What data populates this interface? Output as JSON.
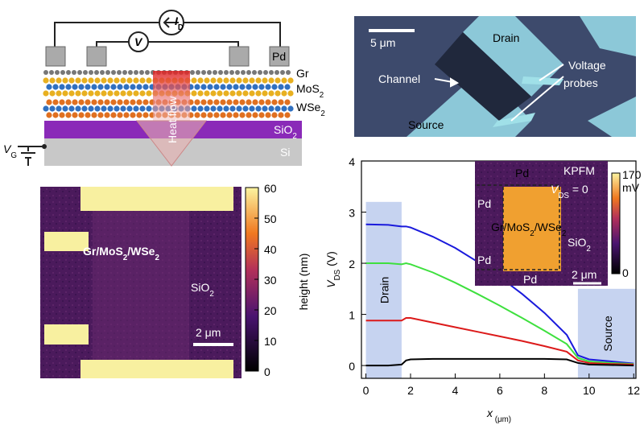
{
  "schematic": {
    "current": [
      "I",
      "D"
    ],
    "voltmeter": "V",
    "pd": "Pd",
    "gr": "Gr",
    "mos2": [
      "MoS",
      "2"
    ],
    "wse2": [
      "WSe",
      "2"
    ],
    "sio2": [
      "SiO",
      "2"
    ],
    "si": "Si",
    "gate": [
      "V",
      "G"
    ],
    "heat": "Heat flow"
  },
  "optical_image": {
    "scale": "5 μm",
    "drain": "Drain",
    "channel": "Channel",
    "source": "Source",
    "probes": [
      "Voltage",
      "probes"
    ]
  },
  "afm_map": {
    "sample": [
      "Gr/MoS",
      "2",
      "/WSe",
      "2"
    ],
    "substrate": [
      "SiO",
      "2"
    ],
    "scale": "2 μm",
    "colorbar_label": "height (nm)",
    "clim": [
      0,
      60
    ],
    "ticks": [
      0,
      10,
      20,
      30,
      40,
      50,
      60
    ]
  },
  "chart_data": {
    "type": "line",
    "x_label": [
      "x",
      " (μm)"
    ],
    "y_label": [
      "V",
      "DS",
      " (V)"
    ],
    "x": [
      0,
      1,
      1.6,
      1.8,
      2,
      3,
      4,
      5,
      6,
      7,
      8,
      9,
      9.5,
      10,
      11,
      12
    ],
    "series": [
      {
        "color": "#1a1adc",
        "values": [
          2.76,
          2.75,
          2.72,
          2.72,
          2.7,
          2.52,
          2.3,
          2.03,
          1.73,
          1.4,
          1.03,
          0.6,
          0.2,
          0.12,
          0.08,
          0.04
        ]
      },
      {
        "color": "#3ee03e",
        "values": [
          2.0,
          2.0,
          1.98,
          2.0,
          1.98,
          1.82,
          1.62,
          1.4,
          1.17,
          0.93,
          0.68,
          0.42,
          0.15,
          0.08,
          0.05,
          0.03
        ]
      },
      {
        "color": "#dc1a1a",
        "values": [
          0.88,
          0.88,
          0.88,
          0.93,
          0.93,
          0.84,
          0.75,
          0.66,
          0.57,
          0.48,
          0.38,
          0.27,
          0.1,
          0.05,
          0.03,
          0.02
        ]
      },
      {
        "color": "#000000",
        "values": [
          0,
          0,
          0.02,
          0.1,
          0.12,
          0.13,
          0.13,
          0.13,
          0.13,
          0.13,
          0.13,
          0.12,
          0.05,
          0.02,
          0.01,
          0
        ]
      }
    ],
    "regions": [
      {
        "label": "Drain",
        "x": [
          0,
          1.6
        ],
        "top": 3.2
      },
      {
        "label": "Source",
        "x": [
          9.5,
          12.1
        ],
        "top": 1.5
      }
    ],
    "xlim": [
      -0.2,
      12.1
    ],
    "ylim": [
      -0.25,
      4
    ],
    "xticks": [
      0,
      2,
      4,
      6,
      8,
      10,
      12
    ],
    "yticks": [
      0,
      1,
      2,
      3,
      4
    ],
    "inset": {
      "title": "KPFM",
      "condition": [
        "V",
        "DS",
        " = 0"
      ],
      "sample": [
        "Gr/MoS",
        "2",
        "/WSe",
        "2"
      ],
      "substrate": [
        "SiO",
        "2"
      ],
      "pd": [
        "Pd",
        "Pd",
        "Pd",
        "Pd"
      ],
      "scale": "2 μm",
      "colorbar_max": 170,
      "colorbar_unit": "mV",
      "colorbar_min": 0
    }
  }
}
